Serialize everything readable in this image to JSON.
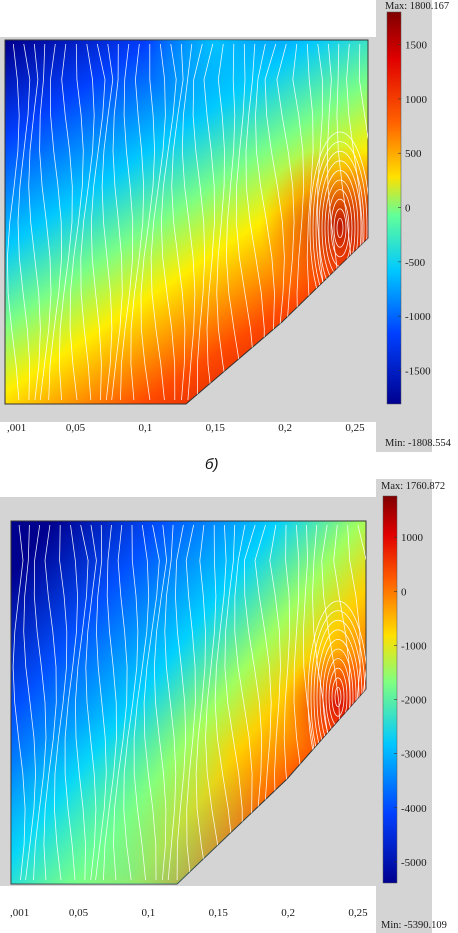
{
  "caption": "б)",
  "chart_data": [
    {
      "type": "heatmap",
      "panel": "top",
      "title": "",
      "xlabel": "",
      "ylabel": "",
      "x_ticks": [
        0.001,
        0.05,
        0.1,
        0.15,
        0.2,
        0.25
      ],
      "x_tick_labels": [
        ",001",
        "0,05",
        "0,1",
        "0,15",
        "0,2",
        "0,25"
      ],
      "xlim": [
        0.001,
        0.25
      ],
      "colorbar": {
        "max_label": "Max: 1800.167",
        "min_label": "Min: -1808.554",
        "max": 1800.167,
        "min": -1808.554,
        "ticks": [
          1500,
          1000,
          500,
          0,
          -500,
          -1000,
          -1500
        ],
        "tick_labels": [
          "1500",
          "1000",
          "500",
          "0",
          "-500",
          "-1000",
          "-1500"
        ],
        "colormap": [
          "#00008f",
          "#0030ff",
          "#00d0ff",
          "#80ff80",
          "#ffe000",
          "#ff4000",
          "#800000"
        ]
      },
      "streamlines": true,
      "streamline_color": "#ffffff"
    },
    {
      "type": "heatmap",
      "panel": "bottom",
      "title": "",
      "xlabel": "",
      "ylabel": "",
      "x_ticks": [
        0.001,
        0.05,
        0.1,
        0.15,
        0.2,
        0.25
      ],
      "x_tick_labels": [
        ",001",
        "0,05",
        "0,1",
        "0,15",
        "0,2",
        "0,25"
      ],
      "xlim": [
        0.001,
        0.25
      ],
      "colorbar": {
        "max_label": "Max: 1760.872",
        "min_label": "Min: -5390.109",
        "max": 1760.872,
        "min": -5390.109,
        "ticks": [
          1000,
          0,
          -1000,
          -2000,
          -3000,
          -4000,
          -5000
        ],
        "tick_labels": [
          "1000",
          "0",
          "-1000",
          "-2000",
          "-3000",
          "-4000",
          "-5000"
        ],
        "colormap": [
          "#00008f",
          "#0030ff",
          "#00d0ff",
          "#80ff80",
          "#ffe000",
          "#ff4000",
          "#800000"
        ]
      },
      "streamlines": true,
      "streamline_color": "#ffffff"
    }
  ]
}
